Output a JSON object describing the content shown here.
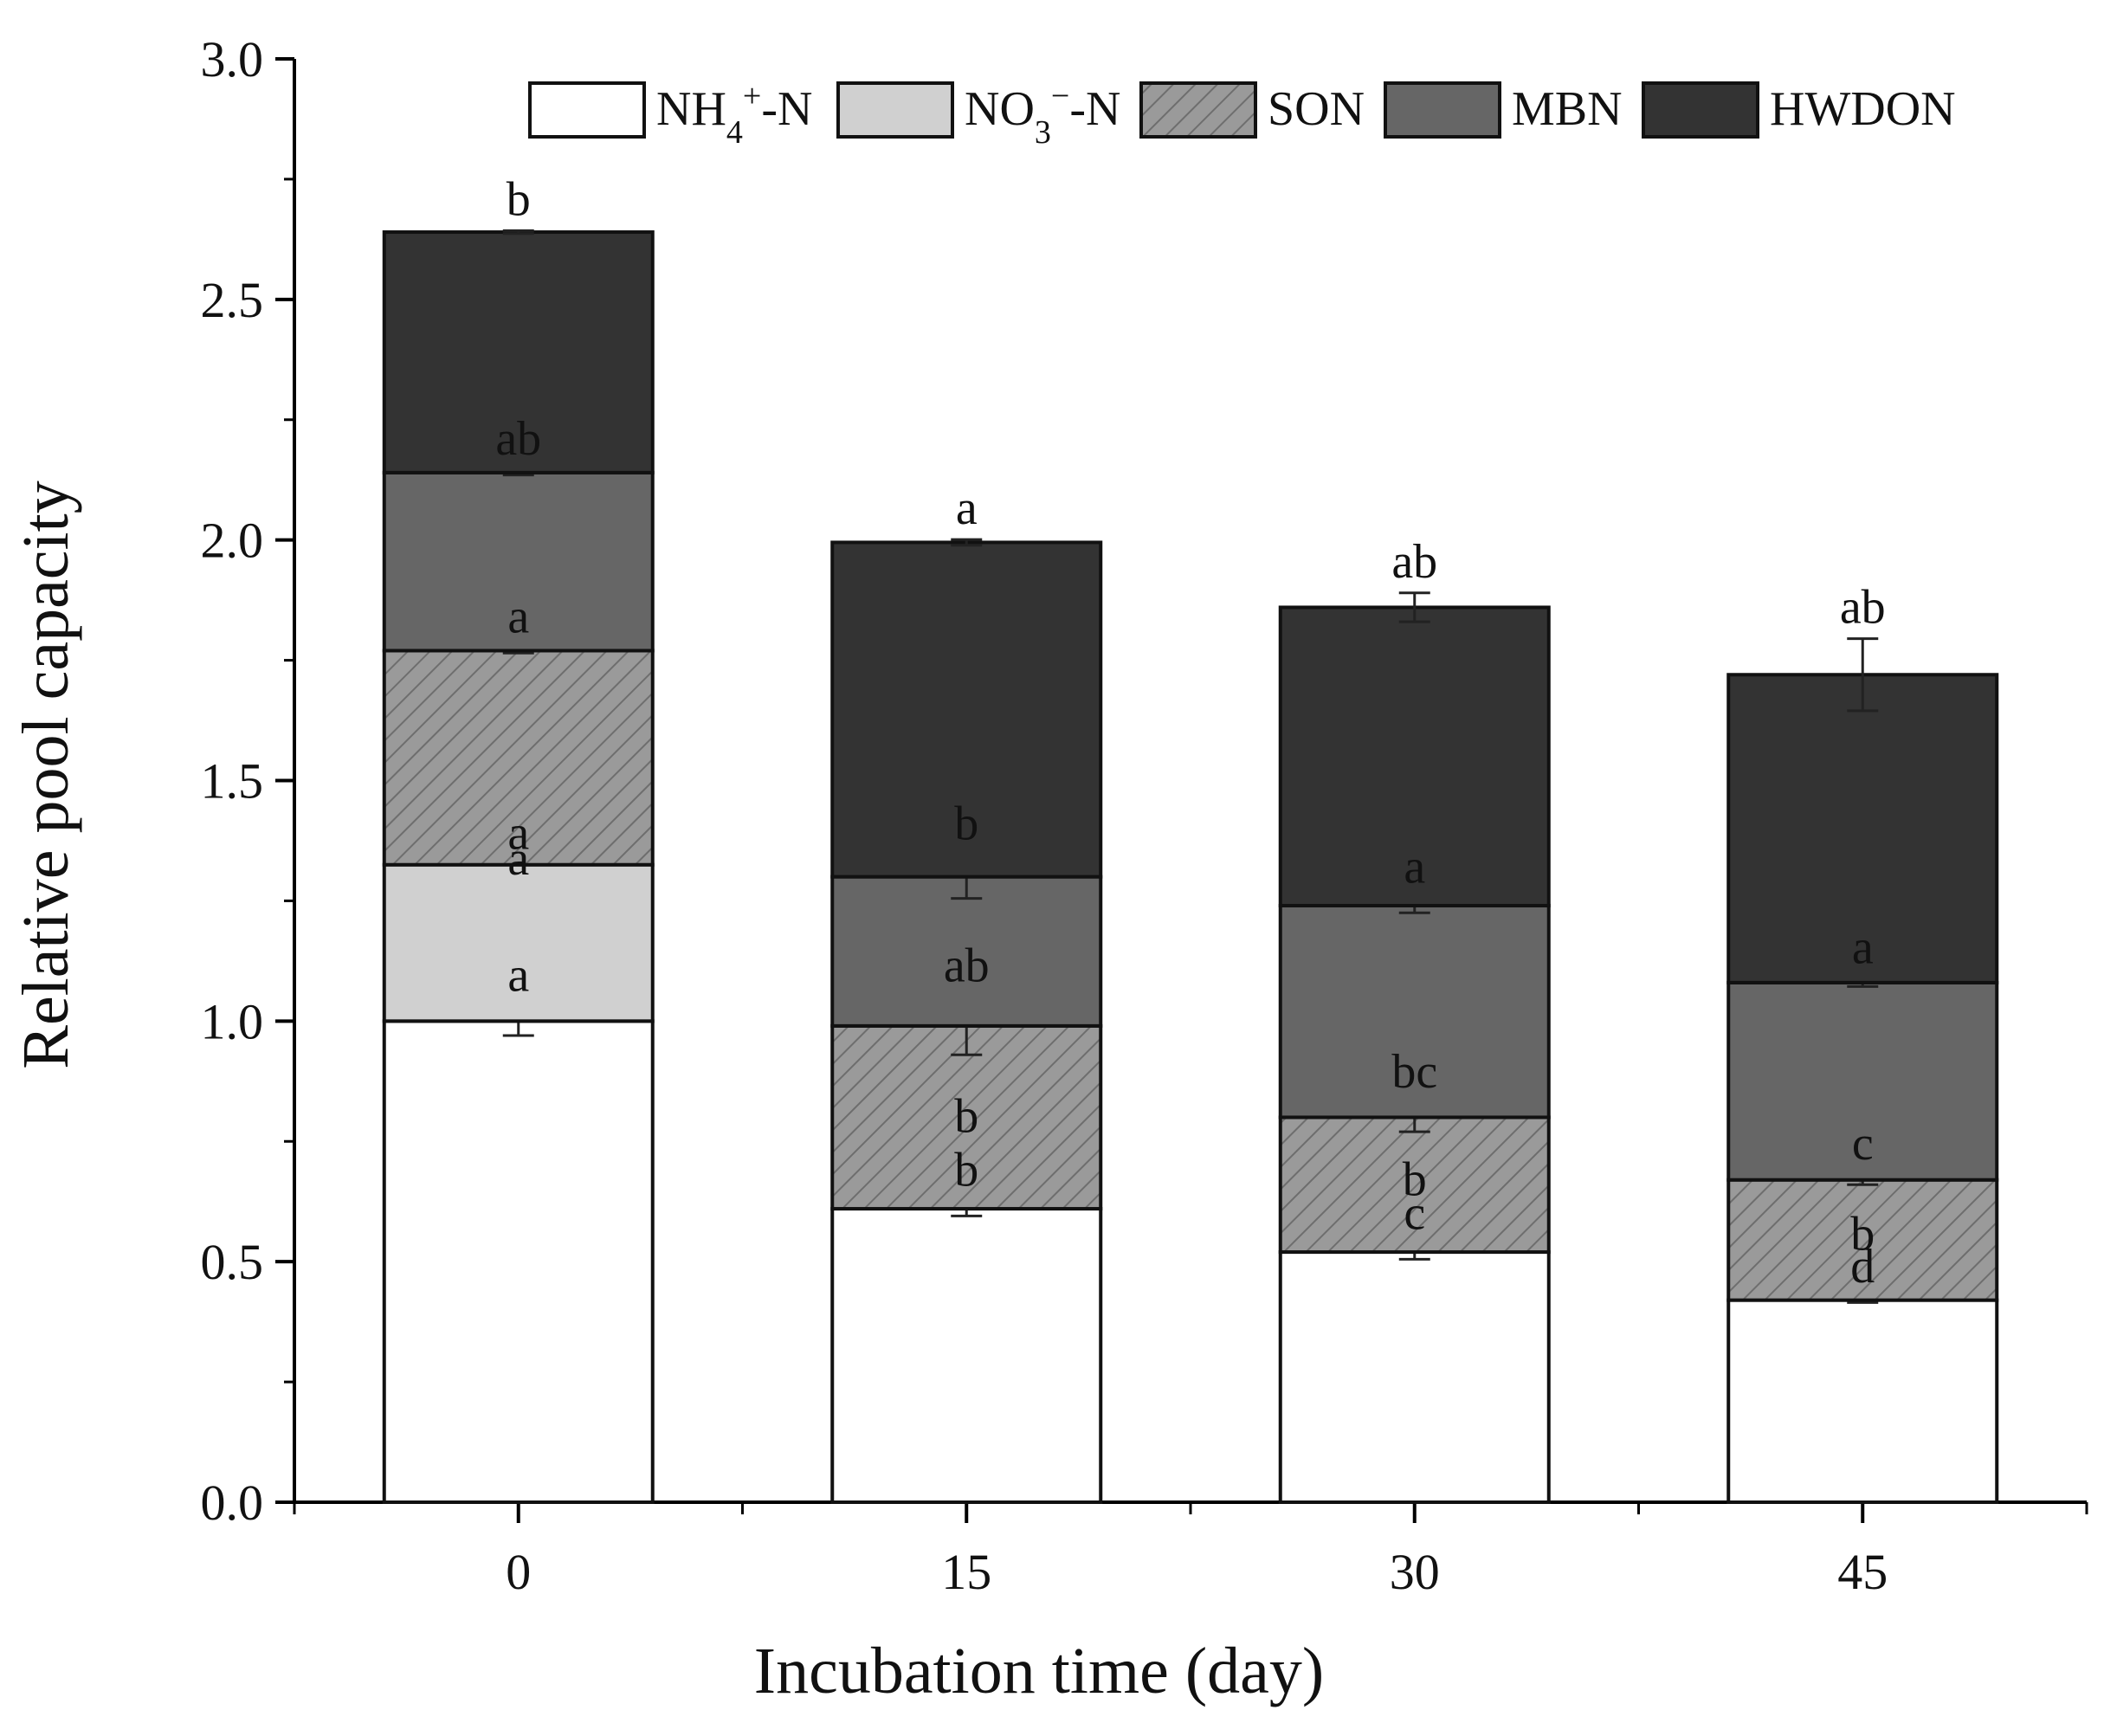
{
  "chart_data": {
    "type": "bar",
    "stacked": true,
    "title": "",
    "xlabel": "Incubation time (day)",
    "ylabel": "Relative pool capacity",
    "ylim": [
      0,
      3.0
    ],
    "yticks": [
      "0.0",
      "0.5",
      "1.0",
      "1.5",
      "2.0",
      "2.5",
      "3.0"
    ],
    "categories": [
      "0",
      "15",
      "30",
      "45"
    ],
    "legend_position": "top-right",
    "series": [
      {
        "key": "nh4",
        "name_parts": [
          [
            "NH",
            ""
          ],
          [
            "4",
            "sub"
          ],
          [
            "+",
            "sup"
          ],
          [
            "-N",
            ""
          ]
        ],
        "name": "NH4+-N",
        "fill": "#ffffff",
        "pattern": "none",
        "values": [
          1.0,
          0.61,
          0.52,
          0.42
        ],
        "errors": [
          0.03,
          0.015,
          0.015,
          0.005
        ],
        "letters": [
          "a",
          "b",
          "c",
          "d"
        ]
      },
      {
        "key": "no3",
        "name_parts": [
          [
            "NO",
            ""
          ],
          [
            "3",
            "sub"
          ],
          [
            "−",
            "sup"
          ],
          [
            "-N",
            ""
          ]
        ],
        "name": "NO3−-N",
        "fill": "#d0d0d0",
        "pattern": "none",
        "values": [
          0.325,
          0.0,
          0.0,
          0.0
        ],
        "errors": [
          0.0,
          0.0,
          0.0,
          0.0
        ],
        "letters": [
          "a",
          "",
          "",
          ""
        ]
      },
      {
        "key": "son",
        "name_parts": [
          [
            "SON",
            ""
          ]
        ],
        "name": "SON",
        "fill": "#9a9a9a",
        "pattern": "hatch",
        "values": [
          0.445,
          0.38,
          0.28,
          0.25
        ],
        "errors": [
          0.005,
          0.06,
          0.03,
          0.01
        ],
        "letters": [
          "a",
          "ab",
          "bc",
          "c"
        ]
      },
      {
        "key": "mbn",
        "name_parts": [
          [
            "MBN",
            ""
          ]
        ],
        "name": "MBN",
        "fill": "#666666",
        "pattern": "none",
        "values": [
          0.37,
          0.31,
          0.44,
          0.41
        ],
        "errors": [
          0.005,
          0.045,
          0.015,
          0.008
        ],
        "letters": [
          "ab",
          "b",
          "a",
          "a"
        ]
      },
      {
        "key": "hwdon",
        "name_parts": [
          [
            "HWDON",
            ""
          ]
        ],
        "name": "HWDON",
        "fill": "#333333",
        "pattern": "none",
        "values": [
          0.5,
          0.695,
          0.62,
          0.64
        ],
        "errors": [
          0.003,
          0.006,
          0.03,
          0.075
        ],
        "letters": [
          "b",
          "a",
          "ab",
          "ab"
        ]
      }
    ],
    "annotations": {
      "son_extra_letters": [
        "a",
        "b",
        "b",
        "b"
      ]
    }
  }
}
